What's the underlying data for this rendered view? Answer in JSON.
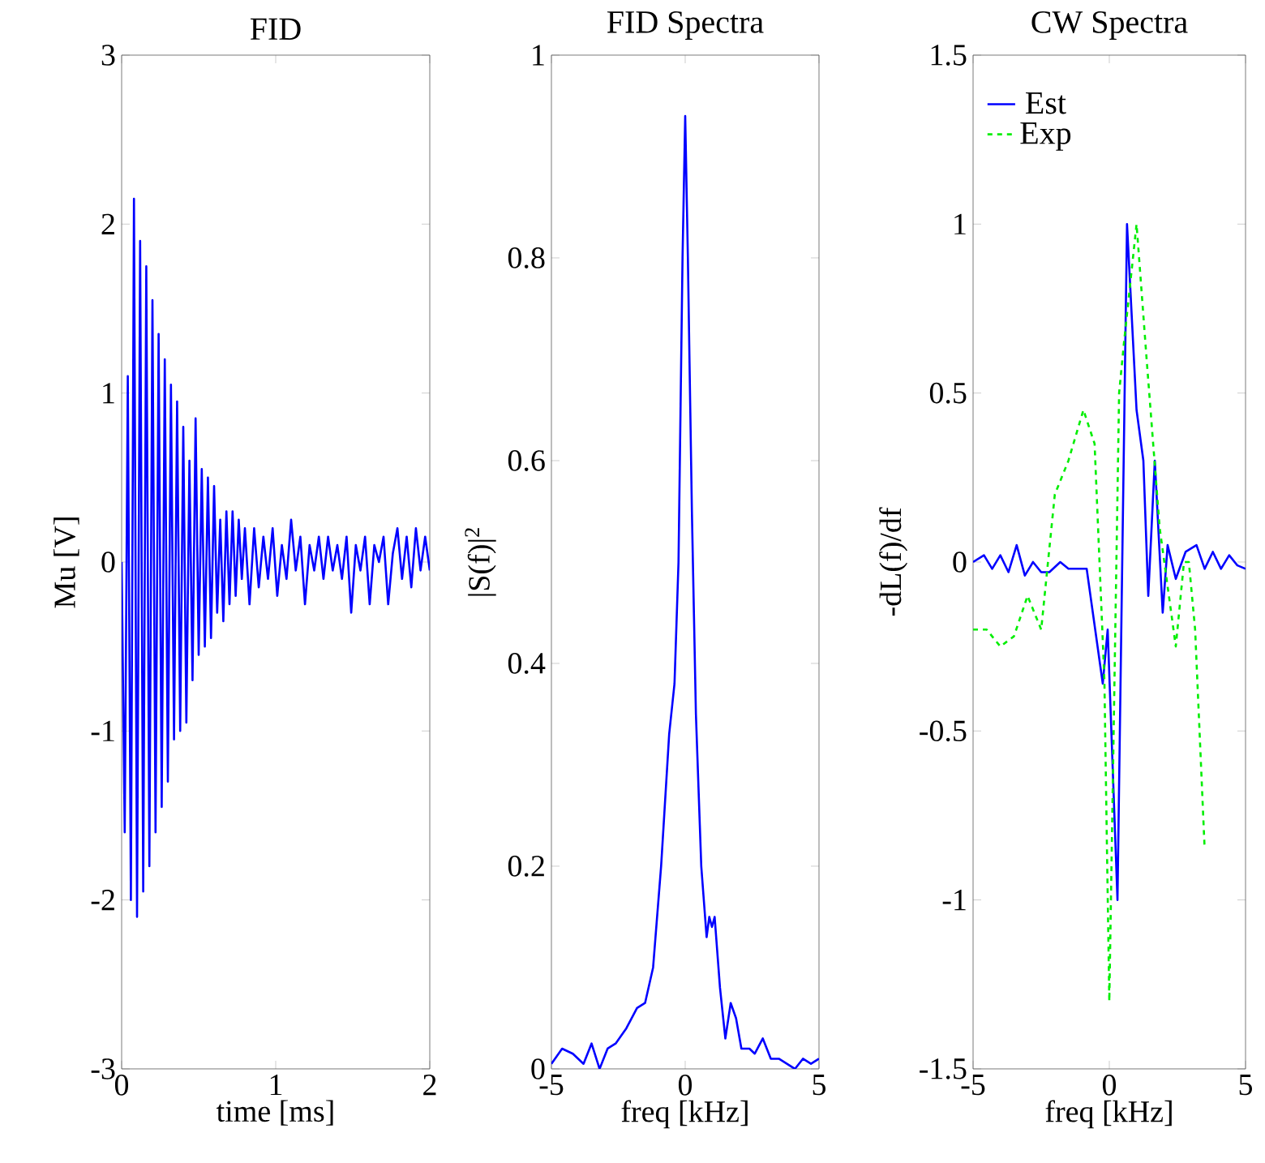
{
  "chart_data": [
    {
      "type": "line",
      "title": "FID",
      "xlabel": "time [ms]",
      "ylabel": "Mu [V]",
      "xlim": [
        0,
        2
      ],
      "ylim": [
        -3,
        3
      ],
      "xticks": [
        0,
        1,
        2
      ],
      "yticks": [
        -3,
        -2,
        -1,
        0,
        1,
        2,
        3
      ],
      "series": [
        {
          "color": "#0000ff",
          "x": [
            0.0,
            0.02,
            0.04,
            0.06,
            0.08,
            0.1,
            0.12,
            0.14,
            0.16,
            0.18,
            0.2,
            0.22,
            0.24,
            0.26,
            0.28,
            0.3,
            0.32,
            0.34,
            0.36,
            0.38,
            0.4,
            0.42,
            0.44,
            0.46,
            0.48,
            0.5,
            0.52,
            0.54,
            0.56,
            0.58,
            0.6,
            0.62,
            0.64,
            0.66,
            0.68,
            0.7,
            0.72,
            0.74,
            0.76,
            0.78,
            0.8,
            0.83,
            0.86,
            0.89,
            0.92,
            0.95,
            0.98,
            1.01,
            1.04,
            1.07,
            1.1,
            1.13,
            1.16,
            1.19,
            1.22,
            1.25,
            1.28,
            1.31,
            1.34,
            1.37,
            1.4,
            1.43,
            1.46,
            1.49,
            1.52,
            1.55,
            1.58,
            1.61,
            1.64,
            1.67,
            1.7,
            1.73,
            1.76,
            1.79,
            1.82,
            1.85,
            1.88,
            1.91,
            1.94,
            1.97,
            2.0
          ],
          "values": [
            0.0,
            -1.6,
            1.1,
            -2.0,
            2.15,
            -2.1,
            1.9,
            -1.95,
            1.75,
            -1.8,
            1.55,
            -1.6,
            1.35,
            -1.45,
            1.2,
            -1.3,
            1.05,
            -1.05,
            0.95,
            -1.0,
            0.8,
            -0.95,
            0.6,
            -0.7,
            0.85,
            -0.55,
            0.55,
            -0.5,
            0.5,
            -0.45,
            0.45,
            -0.3,
            0.25,
            -0.35,
            0.3,
            -0.25,
            0.3,
            -0.2,
            0.25,
            -0.1,
            0.2,
            -0.25,
            0.2,
            -0.15,
            0.15,
            -0.1,
            0.2,
            -0.2,
            0.1,
            -0.1,
            0.25,
            -0.05,
            0.15,
            -0.25,
            0.1,
            -0.05,
            0.15,
            -0.1,
            0.15,
            -0.05,
            0.1,
            -0.1,
            0.15,
            -0.3,
            0.1,
            -0.05,
            0.15,
            -0.25,
            0.1,
            0.0,
            0.15,
            -0.25,
            0.05,
            0.2,
            -0.1,
            0.15,
            -0.15,
            0.2,
            -0.05,
            0.15,
            -0.05
          ]
        }
      ]
    },
    {
      "type": "line",
      "title": "FID Spectra",
      "xlabel": "freq [kHz]",
      "ylabel": "|S(f)|$^{2}$",
      "xlim": [
        -5,
        5
      ],
      "ylim": [
        0,
        1
      ],
      "xticks": [
        -5,
        0,
        5
      ],
      "yticks": [
        0,
        0.2,
        0.4,
        0.6,
        0.8,
        1
      ],
      "series": [
        {
          "color": "#0000ff",
          "x": [
            -5,
            -4.6,
            -4.2,
            -3.8,
            -3.5,
            -3.2,
            -2.9,
            -2.6,
            -2.2,
            -1.8,
            -1.5,
            -1.2,
            -0.9,
            -0.6,
            -0.4,
            -0.25,
            -0.1,
            0,
            0.1,
            0.25,
            0.4,
            0.6,
            0.8,
            0.9,
            1.0,
            1.1,
            1.3,
            1.5,
            1.7,
            1.9,
            2.1,
            2.4,
            2.6,
            2.9,
            3.2,
            3.5,
            3.8,
            4.1,
            4.4,
            4.7,
            5
          ],
          "values": [
            0.005,
            0.02,
            0.015,
            0.005,
            0.025,
            0.0,
            0.02,
            0.025,
            0.04,
            0.06,
            0.065,
            0.1,
            0.2,
            0.33,
            0.38,
            0.5,
            0.8,
            0.94,
            0.8,
            0.55,
            0.35,
            0.2,
            0.13,
            0.15,
            0.14,
            0.15,
            0.08,
            0.03,
            0.065,
            0.05,
            0.02,
            0.02,
            0.015,
            0.03,
            0.01,
            0.01,
            0.005,
            0.0,
            0.01,
            0.005,
            0.01
          ]
        }
      ]
    },
    {
      "type": "line",
      "title": "CW Spectra",
      "xlabel": "freq [kHz]",
      "ylabel": "-dL(f)/df",
      "xlim": [
        -5,
        5
      ],
      "ylim": [
        -1.5,
        1.5
      ],
      "xticks": [
        -5,
        0,
        5
      ],
      "yticks": [
        -1.5,
        -1,
        -0.5,
        0,
        0.5,
        1,
        1.5
      ],
      "legend": "top left",
      "series": [
        {
          "name": "Est",
          "color": "#0000ff",
          "line_style": "solid",
          "x": [
            -5,
            -4.6,
            -4.3,
            -4.0,
            -3.7,
            -3.4,
            -3.1,
            -2.8,
            -2.5,
            -2.2,
            -1.8,
            -1.5,
            -1.2,
            -0.83,
            -0.24,
            -0.06,
            0.3,
            0.65,
            1.0,
            1.25,
            1.43,
            1.67,
            1.96,
            2.14,
            2.44,
            2.8,
            3.2,
            3.5,
            3.8,
            4.1,
            4.4,
            4.7,
            5
          ],
          "values": [
            0.0,
            0.02,
            -0.02,
            0.02,
            -0.03,
            0.05,
            -0.04,
            0.0,
            -0.03,
            -0.03,
            0.0,
            -0.02,
            -0.02,
            -0.02,
            -0.36,
            -0.2,
            -1.0,
            1.0,
            0.45,
            0.3,
            -0.1,
            0.3,
            -0.15,
            0.05,
            -0.05,
            0.03,
            0.05,
            -0.02,
            0.03,
            -0.02,
            0.02,
            -0.01,
            -0.02
          ]
        },
        {
          "name": "Exp",
          "color": "#00ee00",
          "line_style": "dashed",
          "x": [
            -5,
            -4.5,
            -4.0,
            -3.5,
            -3.0,
            -2.5,
            -2.0,
            -1.5,
            -0.95,
            -0.54,
            -0.18,
            0.0,
            0.36,
            0.54,
            1.0,
            1.37,
            1.85,
            2.44,
            2.74,
            2.92,
            3.15,
            3.5
          ],
          "values": [
            -0.2,
            -0.2,
            -0.25,
            -0.22,
            -0.1,
            -0.2,
            0.2,
            0.3,
            0.45,
            0.35,
            -0.35,
            -1.3,
            0.5,
            0.65,
            1.0,
            0.6,
            0.1,
            -0.25,
            0.0,
            0.0,
            -0.2,
            -0.85
          ]
        }
      ]
    }
  ]
}
